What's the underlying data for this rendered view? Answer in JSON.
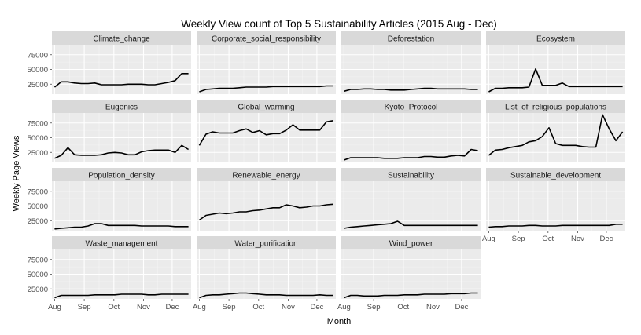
{
  "chart_data": {
    "type": "line",
    "title": "Weekly View count of Top 5 Sustainability Articles (2015 Aug - Dec)",
    "xlabel": "Month",
    "ylabel": "Weekly Page Views",
    "x_ticks": [
      "Aug",
      "Sep",
      "Oct",
      "Nov",
      "Dec"
    ],
    "y_ticks": [
      25000,
      50000,
      75000
    ],
    "y_tick_labels": [
      "25000",
      "50000",
      "75000"
    ],
    "ylim": [
      8000,
      92000
    ],
    "xlim_weeks": [
      -0.4,
      20.4
    ],
    "x_tick_week_positions": [
      0,
      4.43,
      8.86,
      13.29,
      17.57
    ],
    "grid": true,
    "facet_layout": "4 columns x 4 rows, shared axes",
    "colors": {
      "panel_bg": "#ebebeb",
      "strip_bg": "#d9d9d9",
      "gridline": "#ffffff",
      "line": "#000000",
      "tick_text": "#4d4d4d"
    },
    "series": [
      {
        "name": "Climate_change",
        "values": [
          20000,
          29000,
          29000,
          27000,
          26000,
          26000,
          27000,
          24000,
          24000,
          24000,
          24000,
          25000,
          25000,
          25000,
          24000,
          24000,
          26000,
          28000,
          31000,
          43000,
          43000
        ]
      },
      {
        "name": "Corporate_social_responsibility",
        "values": [
          12000,
          16000,
          17000,
          18000,
          18000,
          18000,
          19000,
          20000,
          20000,
          20000,
          20000,
          21000,
          21000,
          21000,
          21000,
          21000,
          21000,
          21000,
          21000,
          22000,
          22000
        ]
      },
      {
        "name": "Deforestation",
        "values": [
          13000,
          16000,
          16000,
          17000,
          17000,
          16000,
          16000,
          15000,
          15000,
          15000,
          16000,
          17000,
          18000,
          18000,
          17000,
          17000,
          17000,
          17000,
          17000,
          16000,
          16000
        ]
      },
      {
        "name": "Ecosystem",
        "values": [
          12000,
          18000,
          18000,
          19000,
          19000,
          19000,
          20000,
          51000,
          23000,
          23000,
          23000,
          27000,
          21000,
          21000,
          21000,
          21000,
          21000,
          21000,
          21000,
          21000,
          21000
        ]
      },
      {
        "name": "Eugenics",
        "values": [
          15000,
          20000,
          33000,
          21000,
          20000,
          20000,
          20000,
          21000,
          24000,
          25000,
          24000,
          21000,
          21000,
          26000,
          28000,
          29000,
          29000,
          29000,
          25000,
          37000,
          30000
        ]
      },
      {
        "name": "Global_warming",
        "values": [
          37000,
          56000,
          60000,
          58000,
          58000,
          58000,
          62000,
          65000,
          59000,
          62000,
          55000,
          57000,
          57000,
          63000,
          72000,
          63000,
          63000,
          63000,
          63000,
          77000,
          79000
        ]
      },
      {
        "name": "Kyoto_Protocol",
        "values": [
          12000,
          16000,
          16000,
          16000,
          16000,
          16000,
          15000,
          15000,
          15000,
          16000,
          16000,
          16000,
          18000,
          18000,
          17000,
          17000,
          19000,
          20000,
          19000,
          30000,
          28000
        ]
      },
      {
        "name": "List_of_religious_populations",
        "values": [
          20000,
          29000,
          30000,
          33000,
          35000,
          37000,
          43000,
          45000,
          52000,
          67000,
          40000,
          37000,
          37000,
          37000,
          35000,
          34000,
          34000,
          89000,
          65000,
          45000,
          60000
        ]
      },
      {
        "name": "Population_density",
        "values": [
          11000,
          12000,
          13000,
          14000,
          14000,
          16000,
          20000,
          20000,
          17000,
          17000,
          17000,
          17000,
          17000,
          16000,
          16000,
          16000,
          16000,
          16000,
          15000,
          15000,
          15000
        ]
      },
      {
        "name": "Renewable_energy",
        "values": [
          26000,
          34000,
          36000,
          38000,
          37000,
          38000,
          40000,
          40000,
          42000,
          43000,
          45000,
          47000,
          47000,
          52000,
          50000,
          47000,
          48000,
          50000,
          50000,
          52000,
          53000
        ]
      },
      {
        "name": "Sustainability",
        "values": [
          12000,
          14000,
          15000,
          16000,
          17000,
          18000,
          19000,
          20000,
          24000,
          17000,
          17000,
          17000,
          17000,
          17000,
          17000,
          17000,
          17000,
          17000,
          17000,
          17000,
          17000
        ]
      },
      {
        "name": "Sustainable_development",
        "values": [
          14000,
          15000,
          15000,
          16000,
          16000,
          16000,
          17000,
          17000,
          16000,
          16000,
          16000,
          17000,
          17000,
          17000,
          17000,
          17000,
          17000,
          17000,
          17000,
          19000,
          19000
        ]
      },
      {
        "name": "Waste_management",
        "values": [
          10000,
          14000,
          14000,
          14000,
          14000,
          14000,
          15000,
          15000,
          15000,
          15000,
          16000,
          16000,
          16000,
          16000,
          15000,
          15000,
          16000,
          16000,
          16000,
          16000,
          16000
        ]
      },
      {
        "name": "Water_purification",
        "values": [
          10000,
          14000,
          15000,
          15000,
          16000,
          17000,
          18000,
          18000,
          17000,
          16000,
          15000,
          15000,
          15000,
          14000,
          14000,
          14000,
          14000,
          14000,
          15000,
          14000,
          14000
        ]
      },
      {
        "name": "Wind_power",
        "values": [
          10000,
          14000,
          14000,
          13000,
          13000,
          13000,
          14000,
          14000,
          14000,
          15000,
          15000,
          15000,
          16000,
          16000,
          16000,
          16000,
          17000,
          17000,
          17000,
          18000,
          18000
        ]
      }
    ]
  }
}
